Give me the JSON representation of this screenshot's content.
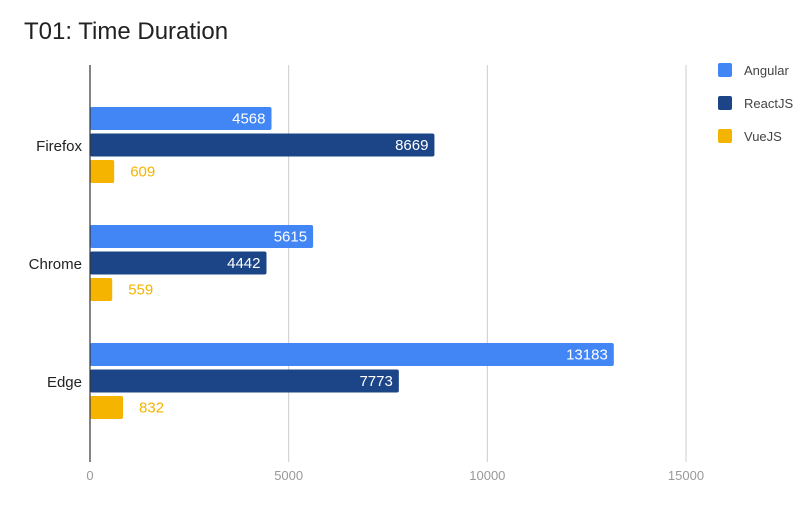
{
  "chart_data": {
    "type": "bar",
    "orientation": "horizontal",
    "title": "T01: Time Duration",
    "categories": [
      "Firefox",
      "Chrome",
      "Edge"
    ],
    "series": [
      {
        "name": "Angular",
        "color": "#4285f4",
        "values": [
          4568,
          5615,
          13183
        ]
      },
      {
        "name": "ReactJS",
        "color": "#1c4587",
        "values": [
          8669,
          4442,
          7773
        ]
      },
      {
        "name": "VueJS",
        "color": "#f4b400",
        "values": [
          609,
          559,
          832
        ]
      }
    ],
    "xlim": [
      0,
      17500
    ],
    "xticks": [
      "0",
      "5000",
      "10000",
      "15000"
    ],
    "xtick_values": [
      0,
      5000,
      10000,
      15000
    ],
    "grid": true,
    "legend_position": "right",
    "label_colors": {
      "inside": "#ffffff",
      "outside_vue": "#f4b400",
      "inside_vue": "#212121"
    }
  }
}
